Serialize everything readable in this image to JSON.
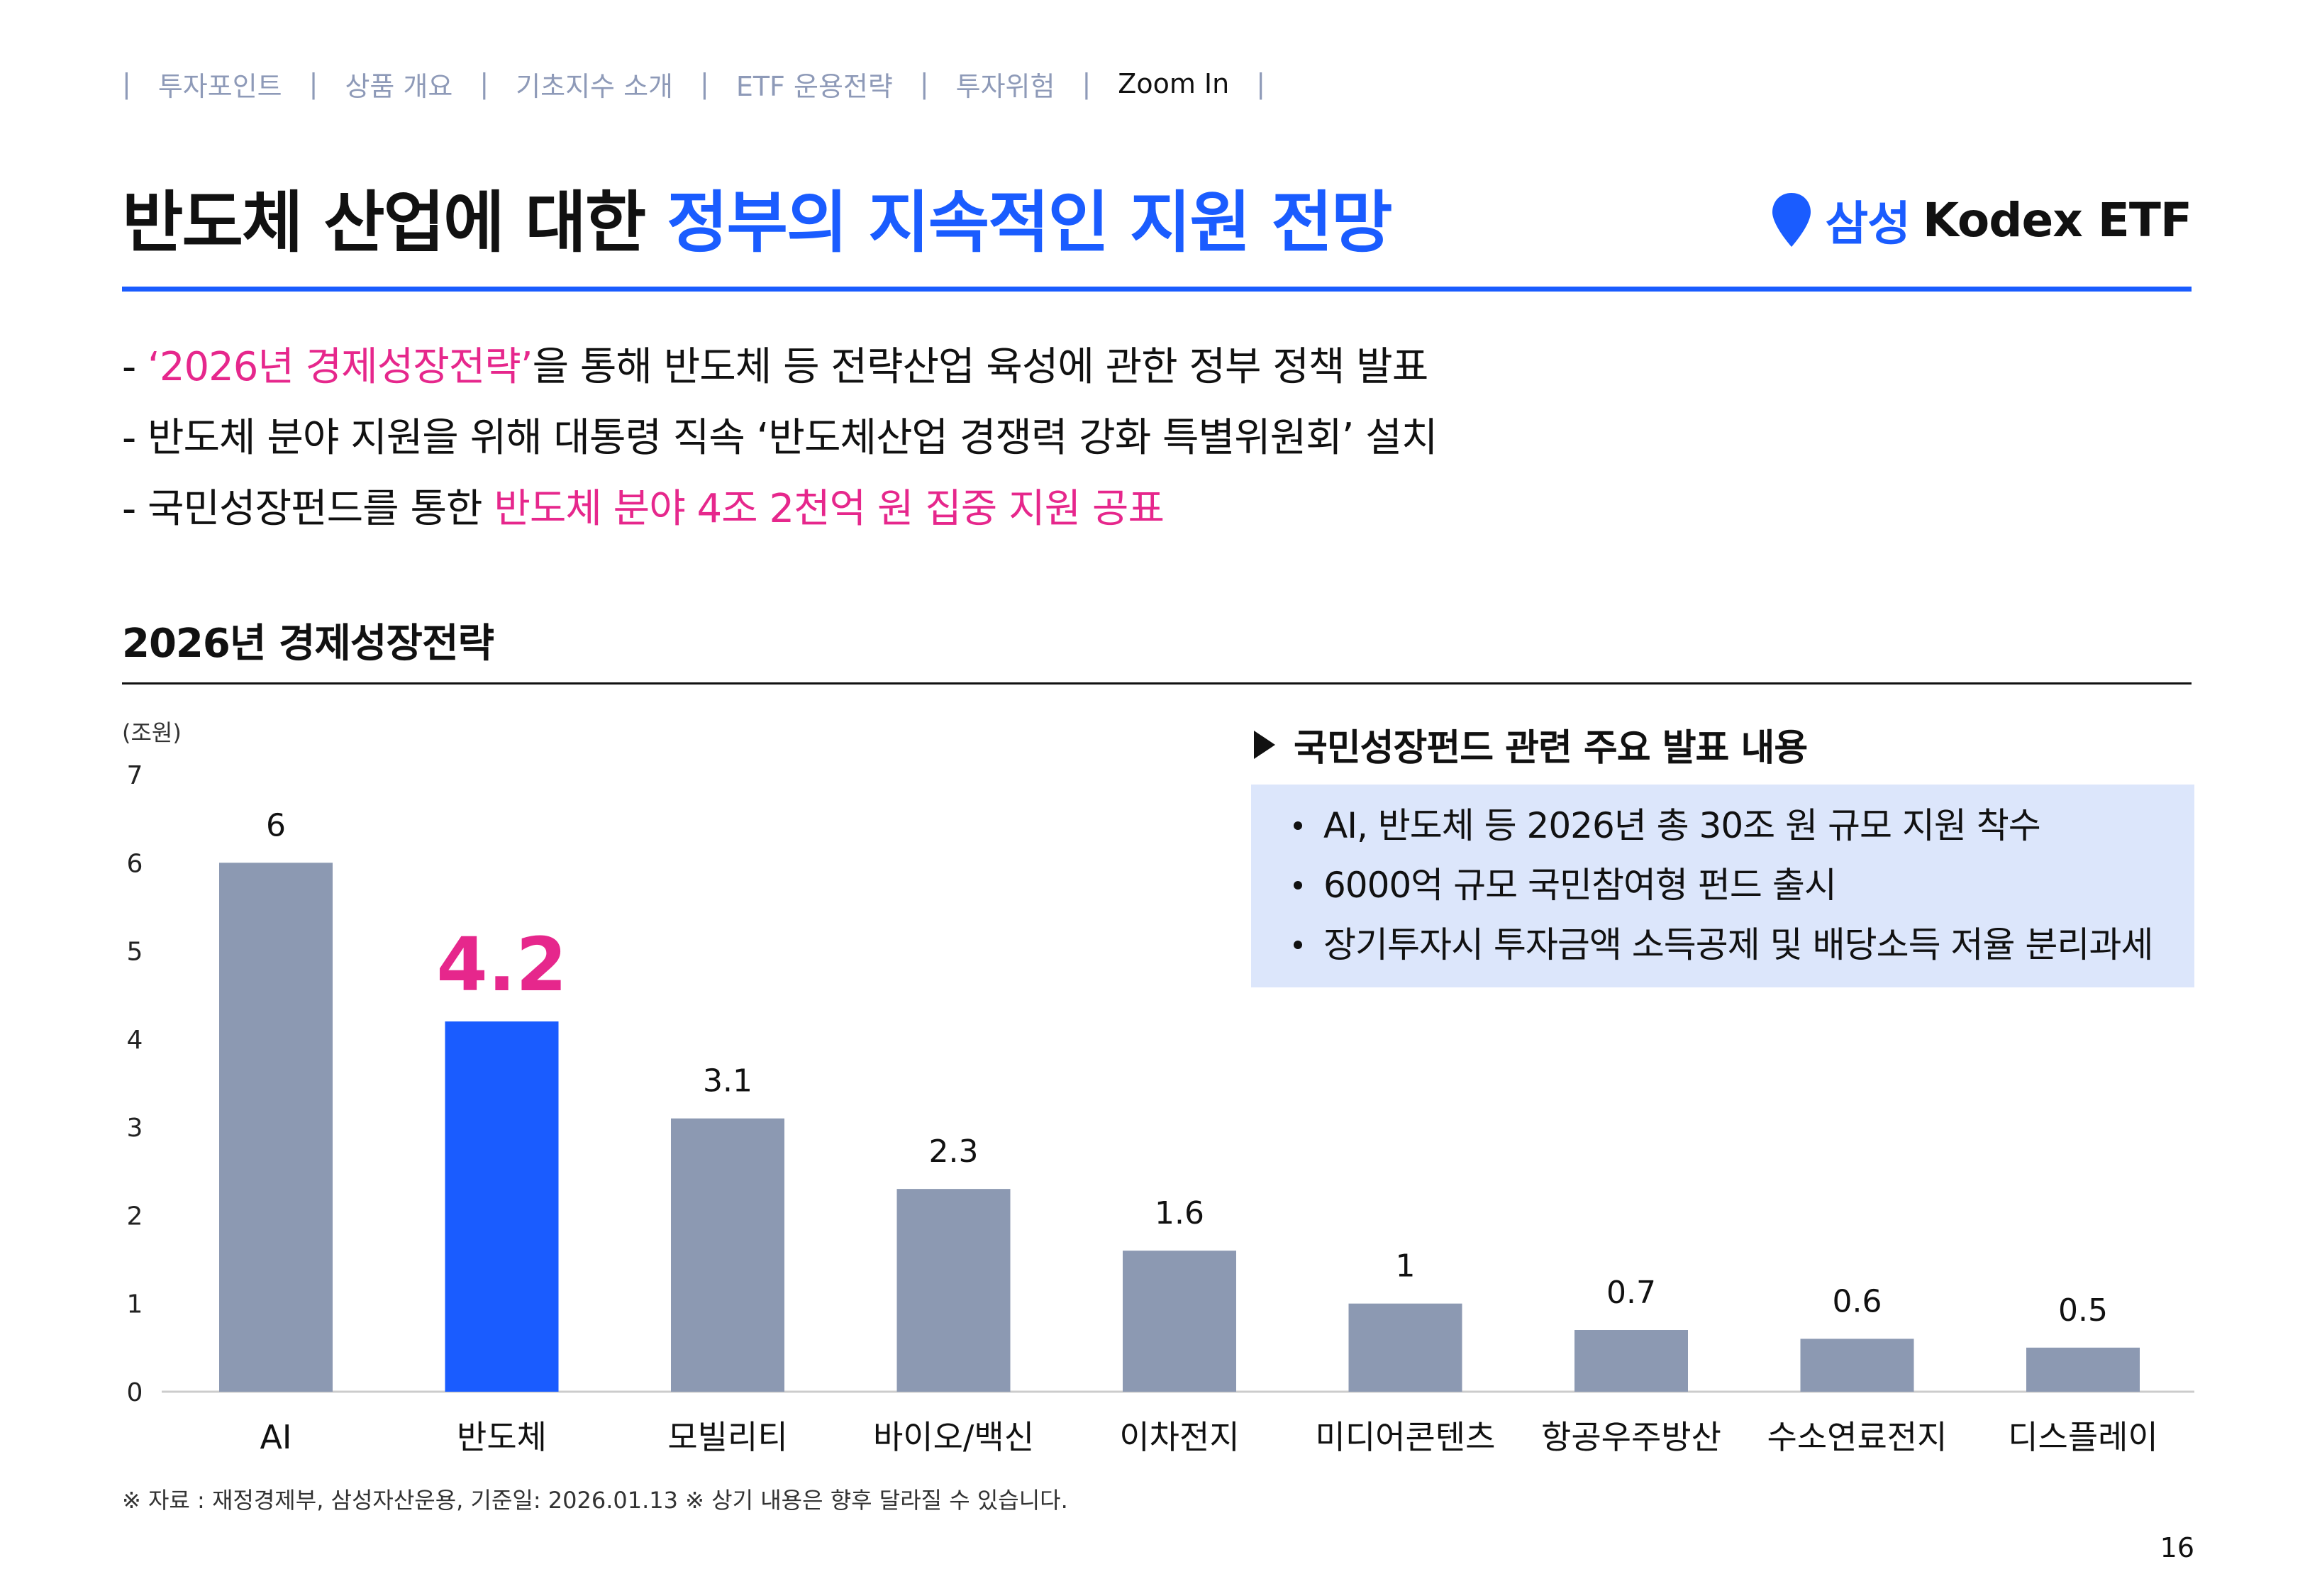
{
  "nav": {
    "items": [
      "투자포인트",
      "상품 개요",
      "기초지수 소개",
      "ETF 운용전략",
      "투자위험",
      "Zoom In"
    ],
    "active_index": 5,
    "separator": "|"
  },
  "title": {
    "part1": "반도체 산업에 대한 ",
    "part2": "정부의 지속적인 지원 전망"
  },
  "brand": {
    "samsung": "삼성",
    "kodex": "Kodex ETF",
    "icon": "location-pin-icon"
  },
  "bullets": [
    {
      "dash": "- ",
      "highlight": "‘2026년 경제성장전략’",
      "text": "을 통해 반도체 등 전략산업 육성에 관한 정부 정책 발표"
    },
    {
      "dash": "- ",
      "text": "반도체 분야 지원을 위해 대통령 직속 ‘반도체산업 경쟁력 강화 특별위원회’ 설치"
    },
    {
      "dash": "- ",
      "text": "국민성장펀드를 통한 ",
      "highlight": "반도체 분야 4조 2천억 원 집중 지원 공표"
    }
  ],
  "subhead": "2026년 경제성장전략",
  "unit": "(조원)",
  "box": {
    "title": "국민성장펀드 관련 주요 발표 내용",
    "items": [
      "AI, 반도체 등 2026년 총 30조 원 규모 지원 착수",
      "6000억 규모 국민참여형 펀드 출시",
      "장기투자시 투자금액 소득공제 및 배당소득 저율 분리과세"
    ]
  },
  "chart_data": {
    "type": "bar",
    "categories": [
      "AI",
      "반도체",
      "모빌리티",
      "바이오/백신",
      "이차전지",
      "미디어콘텐츠",
      "항공우주방산",
      "수소연료전지",
      "디스플레이"
    ],
    "values": [
      6,
      4.2,
      3.1,
      2.3,
      1.6,
      1,
      0.7,
      0.6,
      0.5
    ],
    "value_labels": [
      "6",
      "4.2",
      "3.1",
      "2.3",
      "1.6",
      "1",
      "0.7",
      "0.6",
      "0.5"
    ],
    "yticks": [
      "0",
      "1",
      "2",
      "3",
      "4",
      "5",
      "6",
      "7"
    ],
    "ylim": [
      0,
      7
    ],
    "highlight_index": 1,
    "colors": {
      "default": "#8c99b2",
      "highlight": "#1a5cff",
      "highlight_label": "#e6278c",
      "axis": "#cccccc"
    },
    "grid": false,
    "legend": "none"
  },
  "footnote": "※ 자료 : 재정경제부, 삼성자산운용, 기준일: 2026.01.13 ※ 상기 내용은 향후 달라질 수 있습니다.",
  "page_number": "16"
}
